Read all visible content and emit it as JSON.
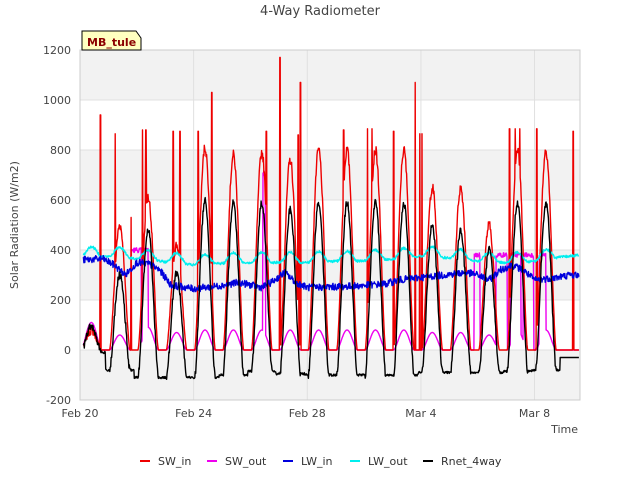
{
  "chart_data": {
    "type": "line",
    "title": "4-Way Radiometer",
    "xlabel": "Time",
    "ylabel": "Solar Radiation (W/m2)",
    "site_label": "MB_tule",
    "xlim": [
      0,
      44
    ],
    "ylim": [
      -200,
      1200
    ],
    "yticks": [
      -200,
      0,
      200,
      400,
      600,
      800,
      1000,
      1200
    ],
    "xticks": [
      {
        "day": 0,
        "label": "Feb 20"
      },
      {
        "day": 10,
        "label": "Feb 24"
      },
      {
        "day": 20,
        "label": "Feb 28"
      },
      {
        "day": 30,
        "label": "Mar 4"
      },
      {
        "day": 40,
        "label": "Mar 8"
      }
    ],
    "day_start": 1,
    "day_count": 17,
    "day_spacing": 2.5,
    "sw_in_peak": [
      80,
      500,
      610,
      420,
      810,
      780,
      790,
      760,
      800,
      800,
      800,
      800,
      650,
      650,
      500,
      800,
      800
    ],
    "sw_in_spikes": [
      {
        "day": 1.8,
        "value": 940
      },
      {
        "day": 3.1,
        "value": 865
      },
      {
        "day": 4.5,
        "value": 530
      },
      {
        "day": 5.5,
        "value": 880
      },
      {
        "day": 5.8,
        "value": 880
      },
      {
        "day": 8.2,
        "value": 875
      },
      {
        "day": 8.8,
        "value": 875
      },
      {
        "day": 10.4,
        "value": 875
      },
      {
        "day": 11.6,
        "value": 1030
      },
      {
        "day": 16.4,
        "value": 875
      },
      {
        "day": 17.6,
        "value": 1170
      },
      {
        "day": 19.2,
        "value": 860
      },
      {
        "day": 19.4,
        "value": 1070
      },
      {
        "day": 23.2,
        "value": 880
      },
      {
        "day": 25.3,
        "value": 885
      },
      {
        "day": 25.7,
        "value": 885
      },
      {
        "day": 27.6,
        "value": 875
      },
      {
        "day": 29.5,
        "value": 1070
      },
      {
        "day": 29.9,
        "value": 865
      },
      {
        "day": 30.1,
        "value": 865
      },
      {
        "day": 37.8,
        "value": 885
      },
      {
        "day": 38.3,
        "value": 885
      },
      {
        "day": 38.7,
        "value": 885
      },
      {
        "day": 40.2,
        "value": 885
      },
      {
        "day": 43.4,
        "value": 875
      }
    ],
    "sw_out_peak": [
      110,
      60,
      90,
      70,
      80,
      80,
      80,
      80,
      80,
      80,
      80,
      80,
      70,
      70,
      60,
      80,
      80
    ],
    "sw_out_plateaus": [
      {
        "start": 4.5,
        "end": 5.4,
        "value": 410
      },
      {
        "start": 5.5,
        "end": 6.0,
        "value": 410
      },
      {
        "start": 16.1,
        "end": 16.3,
        "value": 720
      },
      {
        "start": 34.7,
        "end": 35.2,
        "value": 390
      },
      {
        "start": 36.6,
        "end": 37.6,
        "value": 390
      },
      {
        "start": 37.9,
        "end": 38.8,
        "value": 390
      },
      {
        "start": 39.0,
        "end": 39.9,
        "value": 390
      },
      {
        "start": 40.4,
        "end": 41.0,
        "value": 390
      }
    ],
    "lw_in_points": [
      [
        0,
        360
      ],
      [
        2,
        365
      ],
      [
        3,
        340
      ],
      [
        4,
        300
      ],
      [
        5,
        350
      ],
      [
        6,
        345
      ],
      [
        7,
        320
      ],
      [
        8,
        260
      ],
      [
        10,
        245
      ],
      [
        12,
        255
      ],
      [
        14,
        270
      ],
      [
        16,
        250
      ],
      [
        17,
        275
      ],
      [
        18,
        310
      ],
      [
        19,
        270
      ],
      [
        20,
        250
      ],
      [
        24,
        255
      ],
      [
        27,
        265
      ],
      [
        28,
        280
      ],
      [
        30,
        290
      ],
      [
        32,
        300
      ],
      [
        34,
        310
      ],
      [
        35,
        300
      ],
      [
        36,
        280
      ],
      [
        37,
        320
      ],
      [
        38,
        340
      ],
      [
        39,
        320
      ],
      [
        40,
        280
      ],
      [
        42,
        290
      ],
      [
        43,
        300
      ],
      [
        44,
        300
      ]
    ],
    "lw_out_points": [
      [
        0,
        370
      ],
      [
        2,
        375
      ],
      [
        4,
        370
      ],
      [
        6,
        360
      ],
      [
        8,
        350
      ],
      [
        10,
        340
      ],
      [
        12,
        345
      ],
      [
        14,
        350
      ],
      [
        16,
        350
      ],
      [
        18,
        350
      ],
      [
        20,
        350
      ],
      [
        22,
        355
      ],
      [
        24,
        355
      ],
      [
        26,
        360
      ],
      [
        28,
        365
      ],
      [
        30,
        375
      ],
      [
        32,
        370
      ],
      [
        34,
        360
      ],
      [
        36,
        350
      ],
      [
        38,
        350
      ],
      [
        40,
        355
      ],
      [
        42,
        370
      ],
      [
        44,
        380
      ]
    ],
    "rnet_night": [
      -10,
      -80,
      -110,
      -110,
      -110,
      -100,
      -85,
      -95,
      -100,
      -100,
      -100,
      -100,
      -90,
      -90,
      -90,
      -85,
      -80
    ],
    "rnet_peak": [
      95,
      300,
      480,
      310,
      600,
      590,
      590,
      560,
      590,
      590,
      590,
      590,
      500,
      480,
      400,
      590,
      590
    ],
    "series": [
      {
        "name": "SW_in",
        "color": "#ee0000"
      },
      {
        "name": "SW_out",
        "color": "#ee00ee"
      },
      {
        "name": "LW_in",
        "color": "#0000dd"
      },
      {
        "name": "LW_out",
        "color": "#00eeee"
      },
      {
        "name": "Rnet_4way",
        "color": "#000000"
      }
    ]
  }
}
